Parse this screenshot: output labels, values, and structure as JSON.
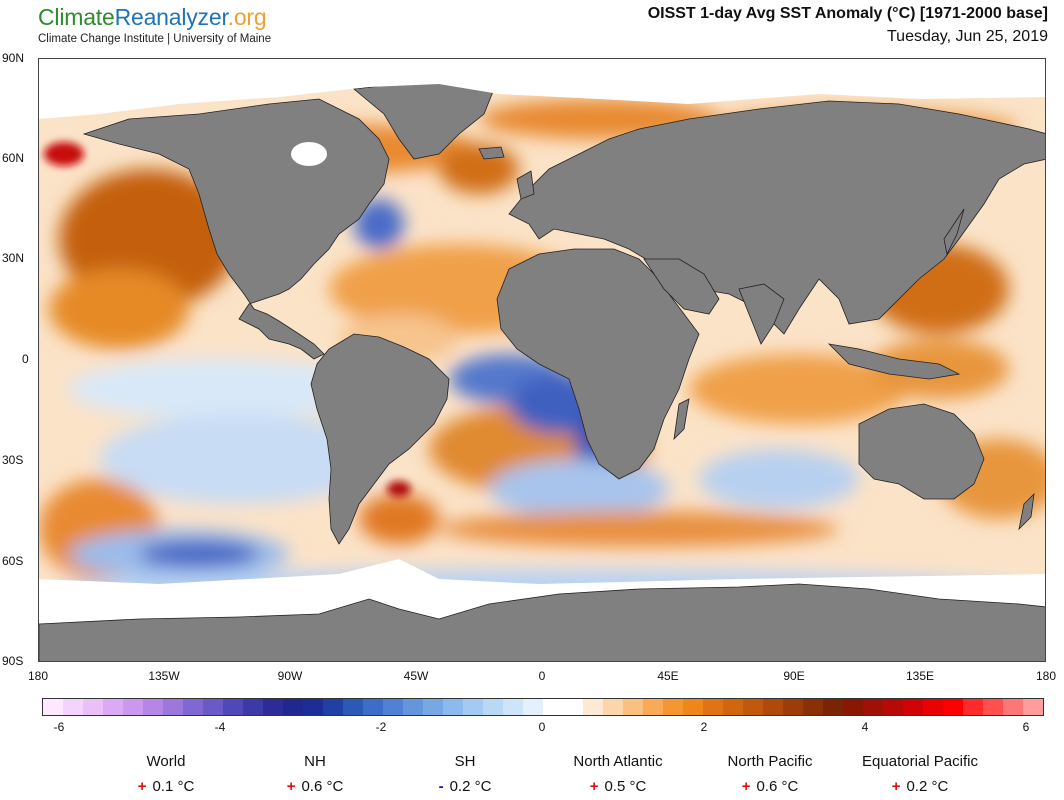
{
  "brand": {
    "name_parts": [
      "Climate",
      "Reanalyzer",
      ".org"
    ],
    "subtitle": "Climate Change Institute | University of Maine"
  },
  "header": {
    "title": "OISST 1-day Avg SST Anomaly (°C) [1971-2000 base]",
    "date": "Tuesday, Jun 25, 2019"
  },
  "map": {
    "latitude_labels": [
      "90N",
      "60N",
      "30N",
      "0",
      "30S",
      "60S",
      "90S"
    ],
    "longitude_labels": [
      "180",
      "135W",
      "90W",
      "45W",
      "0",
      "45E",
      "90E",
      "135E",
      "180"
    ],
    "land_color": "#808080",
    "sea_ice_color": "#ffffff"
  },
  "colorbar": {
    "tick_labels": [
      "-6",
      "-4",
      "-2",
      "0",
      "2",
      "4",
      "6"
    ],
    "colors": [
      "#fce8ff",
      "#f4d4fc",
      "#e9c0f8",
      "#dcaaf4",
      "#cc98ee",
      "#b486e6",
      "#9c78dc",
      "#8068d2",
      "#6a5ac8",
      "#5048b8",
      "#3c3aa8",
      "#2c2c98",
      "#202890",
      "#1c2c98",
      "#2040a8",
      "#2c58b8",
      "#3c6ec8",
      "#4f82d4",
      "#6496dc",
      "#78a8e4",
      "#8cbaec",
      "#a2caf2",
      "#b8d8f6",
      "#cee4fa",
      "#e4f0fc",
      "#ffffff",
      "#ffffff",
      "#fde9d4",
      "#fcd6aa",
      "#fac07e",
      "#f8aa56",
      "#f69632",
      "#ee861a",
      "#e07412",
      "#d2660e",
      "#c2580c",
      "#b04a0a",
      "#9c3c08",
      "#8a3006",
      "#7a2404",
      "#881804",
      "#a01006",
      "#b80808",
      "#d00404",
      "#e80202",
      "#fc0000",
      "#ff2a2a",
      "#ff5050",
      "#ff7676",
      "#ff9c9c"
    ]
  },
  "stats": [
    {
      "name": "World",
      "sign": "+",
      "value": "0.1 °C"
    },
    {
      "name": "NH",
      "sign": "+",
      "value": "0.6 °C"
    },
    {
      "name": "SH",
      "sign": "-",
      "value": "0.2 °C"
    },
    {
      "name": "North Atlantic",
      "sign": "+",
      "value": "0.5 °C"
    },
    {
      "name": "North Pacific",
      "sign": "+",
      "value": "0.6 °C"
    },
    {
      "name": "Equatorial Pacific",
      "sign": "+",
      "value": "0.2 °C"
    }
  ]
}
